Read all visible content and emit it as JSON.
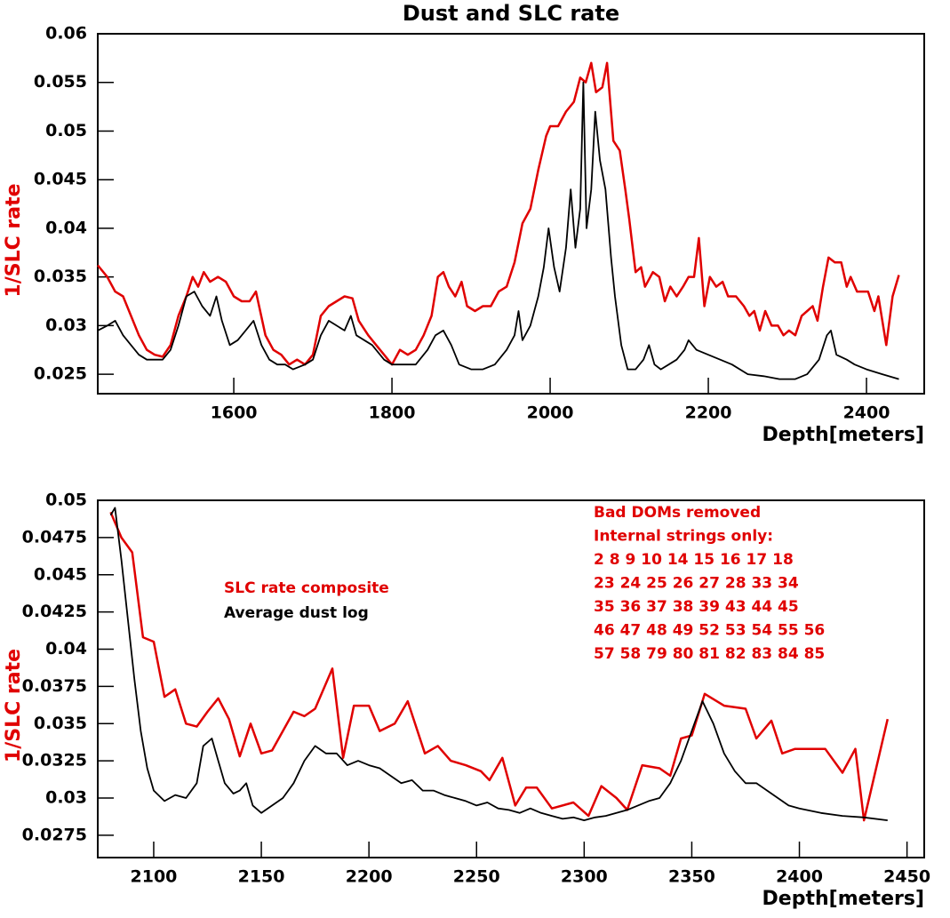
{
  "chart_data": [
    {
      "type": "line",
      "title": "Dust and SLC rate",
      "xlabel": "Depth[meters]",
      "ylabel": "1/SLC rate",
      "xlim": [
        1428,
        2473
      ],
      "ylim": [
        0.023,
        0.06
      ],
      "xticks": [
        1600,
        1800,
        2000,
        2200,
        2400
      ],
      "yticks": [
        0.025,
        0.03,
        0.035,
        0.04,
        0.045,
        0.05,
        0.055,
        0.06
      ],
      "series": [
        {
          "color": "#e00000",
          "x": [
            1428,
            1440,
            1450,
            1460,
            1470,
            1480,
            1490,
            1500,
            1510,
            1520,
            1530,
            1540,
            1548,
            1555,
            1562,
            1570,
            1580,
            1590,
            1600,
            1610,
            1620,
            1628,
            1640,
            1650,
            1660,
            1670,
            1680,
            1690,
            1700,
            1710,
            1720,
            1730,
            1740,
            1750,
            1758,
            1770,
            1780,
            1790,
            1800,
            1810,
            1820,
            1830,
            1840,
            1850,
            1858,
            1865,
            1872,
            1880,
            1888,
            1895,
            1905,
            1915,
            1925,
            1935,
            1945,
            1955,
            1965,
            1975,
            1985,
            1995,
            2000,
            2010,
            2020,
            2030,
            2038,
            2045,
            2052,
            2058,
            2066,
            2072,
            2080,
            2088,
            2095,
            2100,
            2108,
            2115,
            2120,
            2130,
            2138,
            2145,
            2152,
            2160,
            2168,
            2175,
            2182,
            2188,
            2195,
            2202,
            2210,
            2218,
            2225,
            2235,
            2245,
            2252,
            2258,
            2265,
            2272,
            2280,
            2288,
            2295,
            2302,
            2310,
            2318,
            2325,
            2332,
            2338,
            2345,
            2352,
            2360,
            2368,
            2375,
            2380,
            2388,
            2395,
            2402,
            2410,
            2415,
            2425,
            2433,
            2441
          ],
          "values": [
            0.0362,
            0.035,
            0.0335,
            0.033,
            0.031,
            0.029,
            0.0275,
            0.027,
            0.0268,
            0.028,
            0.031,
            0.033,
            0.035,
            0.034,
            0.0355,
            0.0345,
            0.035,
            0.0345,
            0.033,
            0.0325,
            0.0325,
            0.0335,
            0.029,
            0.0275,
            0.027,
            0.026,
            0.0265,
            0.026,
            0.027,
            0.031,
            0.032,
            0.0325,
            0.033,
            0.0328,
            0.0305,
            0.029,
            0.028,
            0.027,
            0.026,
            0.0275,
            0.027,
            0.0275,
            0.029,
            0.031,
            0.035,
            0.0355,
            0.034,
            0.033,
            0.0345,
            0.032,
            0.0315,
            0.032,
            0.032,
            0.0335,
            0.034,
            0.0365,
            0.0405,
            0.042,
            0.046,
            0.0495,
            0.0505,
            0.0505,
            0.052,
            0.053,
            0.0555,
            0.055,
            0.057,
            0.054,
            0.0545,
            0.057,
            0.049,
            0.048,
            0.044,
            0.041,
            0.0355,
            0.036,
            0.034,
            0.0355,
            0.035,
            0.0325,
            0.034,
            0.033,
            0.034,
            0.035,
            0.035,
            0.039,
            0.032,
            0.035,
            0.034,
            0.0345,
            0.033,
            0.033,
            0.032,
            0.031,
            0.0315,
            0.0295,
            0.0315,
            0.03,
            0.03,
            0.029,
            0.0295,
            0.029,
            0.031,
            0.0315,
            0.032,
            0.0305,
            0.034,
            0.037,
            0.0365,
            0.0365,
            0.034,
            0.035,
            0.0335,
            0.0335,
            0.0335,
            0.0315,
            0.033,
            0.028,
            0.033,
            0.0352
          ]
        },
        {
          "color": "#000000",
          "x": [
            1428,
            1440,
            1450,
            1460,
            1470,
            1480,
            1490,
            1500,
            1510,
            1520,
            1530,
            1540,
            1550,
            1560,
            1570,
            1578,
            1585,
            1595,
            1605,
            1615,
            1625,
            1635,
            1645,
            1655,
            1665,
            1675,
            1690,
            1700,
            1710,
            1720,
            1730,
            1740,
            1748,
            1755,
            1765,
            1775,
            1790,
            1800,
            1815,
            1830,
            1845,
            1855,
            1865,
            1875,
            1885,
            1900,
            1915,
            1930,
            1945,
            1955,
            1960,
            1965,
            1975,
            1985,
            1992,
            1998,
            2005,
            2012,
            2020,
            2026,
            2032,
            2038,
            2042,
            2046,
            2052,
            2057,
            2063,
            2070,
            2077,
            2082,
            2090,
            2098,
            2108,
            2118,
            2125,
            2132,
            2140,
            2150,
            2160,
            2170,
            2175,
            2185,
            2200,
            2215,
            2230,
            2250,
            2270,
            2290,
            2310,
            2325,
            2340,
            2350,
            2355,
            2362,
            2375,
            2385,
            2400,
            2420,
            2441
          ],
          "values": [
            0.0295,
            0.03,
            0.0305,
            0.029,
            0.028,
            0.027,
            0.0265,
            0.0265,
            0.0265,
            0.0275,
            0.03,
            0.033,
            0.0335,
            0.032,
            0.031,
            0.033,
            0.0305,
            0.028,
            0.0285,
            0.0295,
            0.0305,
            0.028,
            0.0265,
            0.026,
            0.026,
            0.0255,
            0.026,
            0.0265,
            0.029,
            0.0305,
            0.03,
            0.0295,
            0.031,
            0.029,
            0.0285,
            0.028,
            0.0265,
            0.026,
            0.026,
            0.026,
            0.0275,
            0.029,
            0.0295,
            0.028,
            0.026,
            0.0255,
            0.0255,
            0.026,
            0.0275,
            0.029,
            0.0315,
            0.0285,
            0.03,
            0.033,
            0.036,
            0.04,
            0.036,
            0.0335,
            0.038,
            0.044,
            0.038,
            0.042,
            0.055,
            0.04,
            0.044,
            0.052,
            0.047,
            0.044,
            0.037,
            0.033,
            0.028,
            0.0255,
            0.0255,
            0.0265,
            0.028,
            0.026,
            0.0255,
            0.026,
            0.0265,
            0.0275,
            0.0285,
            0.0275,
            0.027,
            0.0265,
            0.026,
            0.025,
            0.0248,
            0.0245,
            0.0245,
            0.025,
            0.0265,
            0.029,
            0.0295,
            0.027,
            0.0265,
            0.026,
            0.0255,
            0.025,
            0.0245
          ]
        }
      ]
    },
    {
      "type": "line",
      "xlabel": "Depth[meters]",
      "ylabel": "1/SLC rate",
      "xlim": [
        2074,
        2458
      ],
      "ylim": [
        0.026,
        0.05
      ],
      "xticks": [
        2100,
        2150,
        2200,
        2250,
        2300,
        2350,
        2400,
        2450
      ],
      "yticks": [
        0.0275,
        0.03,
        0.0325,
        0.035,
        0.0375,
        0.04,
        0.0425,
        0.045,
        0.0475,
        0.05
      ],
      "annotations": [
        "Bad DOMs removed",
        "Internal strings only:",
        "2 8 9 10 14 15 16 17 18",
        "23 24 25 26 27 28 33 34",
        "35 36 37 38 39 43 44 45",
        "46 47 48 49 52 53 54 55 56",
        "57 58 79 80 81 82 83 84 85"
      ],
      "series": [
        {
          "name": "SLC rate composite",
          "color": "#e00000",
          "x": [
            2080,
            2085,
            2090,
            2095,
            2100,
            2105,
            2110,
            2115,
            2120,
            2125,
            2130,
            2135,
            2140,
            2145,
            2150,
            2155,
            2165,
            2170,
            2175,
            2183,
            2188,
            2193,
            2200,
            2205,
            2212,
            2218,
            2226,
            2232,
            2238,
            2245,
            2252,
            2256,
            2262,
            2268,
            2273,
            2278,
            2285,
            2295,
            2302,
            2308,
            2315,
            2320,
            2327,
            2335,
            2340,
            2345,
            2350,
            2356,
            2365,
            2375,
            2380,
            2387,
            2392,
            2398,
            2412,
            2420,
            2426,
            2430,
            2441
          ],
          "values": [
            0.0492,
            0.0475,
            0.0465,
            0.0408,
            0.0405,
            0.0368,
            0.0373,
            0.035,
            0.0348,
            0.0358,
            0.0367,
            0.0353,
            0.0328,
            0.035,
            0.033,
            0.0332,
            0.0358,
            0.0355,
            0.036,
            0.0387,
            0.0327,
            0.0362,
            0.0362,
            0.0345,
            0.035,
            0.0365,
            0.033,
            0.0335,
            0.0325,
            0.0322,
            0.0318,
            0.0312,
            0.0327,
            0.0295,
            0.0307,
            0.0307,
            0.0293,
            0.0297,
            0.0288,
            0.0308,
            0.03,
            0.0292,
            0.0322,
            0.032,
            0.0315,
            0.034,
            0.0342,
            0.037,
            0.0362,
            0.036,
            0.034,
            0.0352,
            0.033,
            0.0333,
            0.0333,
            0.0317,
            0.0333,
            0.0285,
            0.0353
          ]
        },
        {
          "name": "Average dust log",
          "color": "#000000",
          "x": [
            2080,
            2082,
            2085,
            2088,
            2091,
            2094,
            2097,
            2100,
            2105,
            2110,
            2115,
            2120,
            2123,
            2127,
            2130,
            2133,
            2137,
            2140,
            2143,
            2146,
            2150,
            2155,
            2160,
            2165,
            2170,
            2175,
            2180,
            2185,
            2190,
            2195,
            2200,
            2205,
            2210,
            2215,
            2220,
            2225,
            2230,
            2235,
            2240,
            2245,
            2250,
            2255,
            2260,
            2265,
            2270,
            2275,
            2280,
            2285,
            2290,
            2295,
            2300,
            2305,
            2310,
            2315,
            2320,
            2325,
            2330,
            2335,
            2340,
            2345,
            2350,
            2355,
            2360,
            2365,
            2370,
            2375,
            2380,
            2385,
            2390,
            2395,
            2400,
            2410,
            2420,
            2430,
            2441
          ],
          "values": [
            0.049,
            0.0495,
            0.046,
            0.042,
            0.038,
            0.0345,
            0.032,
            0.0305,
            0.0298,
            0.0302,
            0.03,
            0.031,
            0.0335,
            0.034,
            0.0325,
            0.031,
            0.0303,
            0.0305,
            0.031,
            0.0295,
            0.029,
            0.0295,
            0.03,
            0.031,
            0.0325,
            0.0335,
            0.033,
            0.033,
            0.0322,
            0.0325,
            0.0322,
            0.032,
            0.0315,
            0.031,
            0.0312,
            0.0305,
            0.0305,
            0.0302,
            0.03,
            0.0298,
            0.0295,
            0.0297,
            0.0293,
            0.0292,
            0.029,
            0.0293,
            0.029,
            0.0288,
            0.0286,
            0.0287,
            0.0285,
            0.0287,
            0.0288,
            0.029,
            0.0292,
            0.0295,
            0.0298,
            0.03,
            0.031,
            0.0325,
            0.0345,
            0.0365,
            0.035,
            0.033,
            0.0318,
            0.031,
            0.031,
            0.0305,
            0.03,
            0.0295,
            0.0293,
            0.029,
            0.0288,
            0.0287,
            0.0285
          ]
        }
      ]
    }
  ]
}
